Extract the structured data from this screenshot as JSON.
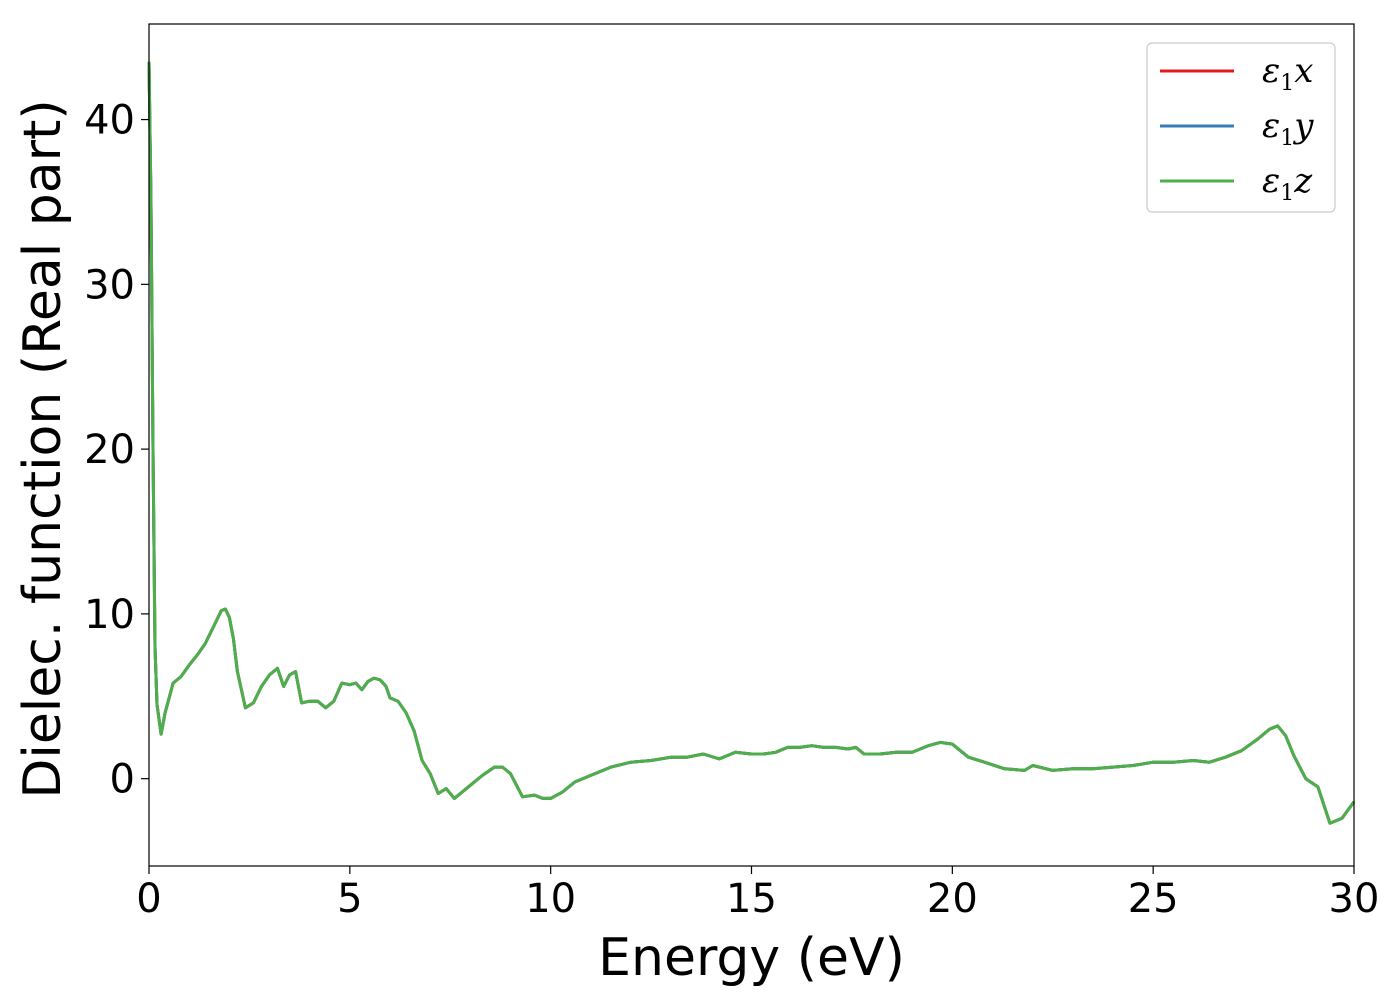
{
  "chart_data": {
    "type": "line",
    "xlabel": "Energy (eV)",
    "ylabel": "Dielec. function (Real part)",
    "xlim": [
      0,
      30
    ],
    "ylim": [
      -5.3,
      45.8
    ],
    "xticks": [
      0,
      5,
      10,
      15,
      20,
      25,
      30
    ],
    "yticks": [
      0,
      10,
      20,
      30,
      40
    ],
    "grid": false,
    "legend_position": "top-right",
    "x": [
      0.0,
      0.05,
      0.1,
      0.15,
      0.2,
      0.3,
      0.4,
      0.6,
      0.8,
      1.0,
      1.2,
      1.4,
      1.6,
      1.8,
      1.9,
      2.0,
      2.1,
      2.2,
      2.4,
      2.6,
      2.8,
      3.0,
      3.2,
      3.35,
      3.5,
      3.65,
      3.8,
      4.0,
      4.2,
      4.4,
      4.6,
      4.8,
      5.0,
      5.15,
      5.3,
      5.45,
      5.6,
      5.75,
      5.9,
      6.0,
      6.2,
      6.4,
      6.6,
      6.8,
      7.0,
      7.2,
      7.4,
      7.6,
      7.8,
      8.0,
      8.3,
      8.6,
      8.8,
      9.0,
      9.3,
      9.6,
      9.8,
      10.0,
      10.3,
      10.6,
      11.0,
      11.5,
      12.0,
      12.5,
      13.0,
      13.4,
      13.8,
      14.2,
      14.6,
      15.0,
      15.3,
      15.6,
      15.9,
      16.2,
      16.5,
      16.8,
      17.1,
      17.4,
      17.6,
      17.8,
      18.2,
      18.6,
      19.0,
      19.4,
      19.7,
      20.0,
      20.4,
      20.8,
      21.3,
      21.8,
      22.0,
      22.5,
      23.0,
      23.5,
      24.0,
      24.5,
      25.0,
      25.5,
      26.0,
      26.4,
      26.8,
      27.2,
      27.6,
      27.9,
      28.1,
      28.3,
      28.5,
      28.8,
      29.1,
      29.4,
      29.7,
      30.0
    ],
    "series": [
      {
        "name": "ε1x",
        "color": "#e41a1c",
        "values": [
          43.5,
          35.0,
          20.0,
          8.0,
          4.5,
          2.7,
          4.0,
          5.8,
          6.2,
          6.9,
          7.5,
          8.2,
          9.2,
          10.2,
          10.3,
          9.8,
          8.5,
          6.5,
          4.3,
          4.6,
          5.6,
          6.3,
          6.7,
          5.6,
          6.3,
          6.5,
          4.6,
          4.7,
          4.7,
          4.3,
          4.7,
          5.8,
          5.7,
          5.8,
          5.4,
          5.9,
          6.1,
          6.0,
          5.6,
          4.9,
          4.7,
          4.0,
          2.9,
          1.1,
          0.3,
          -0.9,
          -0.6,
          -1.2,
          -0.8,
          -0.4,
          0.2,
          0.7,
          0.7,
          0.3,
          -1.1,
          -1.0,
          -1.2,
          -1.2,
          -0.8,
          -0.2,
          0.2,
          0.7,
          1.0,
          1.1,
          1.3,
          1.3,
          1.5,
          1.2,
          1.6,
          1.5,
          1.5,
          1.6,
          1.9,
          1.9,
          2.0,
          1.9,
          1.9,
          1.8,
          1.9,
          1.5,
          1.5,
          1.6,
          1.6,
          2.0,
          2.2,
          2.1,
          1.3,
          1.0,
          0.6,
          0.5,
          0.8,
          0.5,
          0.6,
          0.6,
          0.7,
          0.8,
          1.0,
          1.0,
          1.1,
          1.0,
          1.3,
          1.7,
          2.4,
          3.0,
          3.2,
          2.6,
          1.4,
          0.0,
          -0.5,
          -2.7,
          -2.4,
          -1.4
        ]
      },
      {
        "name": "ε1y",
        "color": "#377eb8",
        "values": [
          43.5,
          35.0,
          20.0,
          8.0,
          4.5,
          2.7,
          4.0,
          5.8,
          6.2,
          6.9,
          7.5,
          8.2,
          9.2,
          10.2,
          10.3,
          9.8,
          8.5,
          6.5,
          4.3,
          4.6,
          5.6,
          6.3,
          6.7,
          5.6,
          6.3,
          6.5,
          4.6,
          4.7,
          4.7,
          4.3,
          4.7,
          5.8,
          5.7,
          5.8,
          5.4,
          5.9,
          6.1,
          6.0,
          5.6,
          4.9,
          4.7,
          4.0,
          2.9,
          1.1,
          0.3,
          -0.9,
          -0.6,
          -1.2,
          -0.8,
          -0.4,
          0.2,
          0.7,
          0.7,
          0.3,
          -1.1,
          -1.0,
          -1.2,
          -1.2,
          -0.8,
          -0.2,
          0.2,
          0.7,
          1.0,
          1.1,
          1.3,
          1.3,
          1.5,
          1.2,
          1.6,
          1.5,
          1.5,
          1.6,
          1.9,
          1.9,
          2.0,
          1.9,
          1.9,
          1.8,
          1.9,
          1.5,
          1.5,
          1.6,
          1.6,
          2.0,
          2.2,
          2.1,
          1.3,
          1.0,
          0.6,
          0.5,
          0.8,
          0.5,
          0.6,
          0.6,
          0.7,
          0.8,
          1.0,
          1.0,
          1.1,
          1.0,
          1.3,
          1.7,
          2.4,
          3.0,
          3.2,
          2.6,
          1.4,
          0.0,
          -0.5,
          -2.7,
          -2.4,
          -1.4
        ]
      },
      {
        "name": "ε1z",
        "color": "#4daf4a",
        "values": [
          43.5,
          35.0,
          20.0,
          8.0,
          4.5,
          2.7,
          4.0,
          5.8,
          6.2,
          6.9,
          7.5,
          8.2,
          9.2,
          10.2,
          10.3,
          9.8,
          8.5,
          6.5,
          4.3,
          4.6,
          5.6,
          6.3,
          6.7,
          5.6,
          6.3,
          6.5,
          4.6,
          4.7,
          4.7,
          4.3,
          4.7,
          5.8,
          5.7,
          5.8,
          5.4,
          5.9,
          6.1,
          6.0,
          5.6,
          4.9,
          4.7,
          4.0,
          2.9,
          1.1,
          0.3,
          -0.9,
          -0.6,
          -1.2,
          -0.8,
          -0.4,
          0.2,
          0.7,
          0.7,
          0.3,
          -1.1,
          -1.0,
          -1.2,
          -1.2,
          -0.8,
          -0.2,
          0.2,
          0.7,
          1.0,
          1.1,
          1.3,
          1.3,
          1.5,
          1.2,
          1.6,
          1.5,
          1.5,
          1.6,
          1.9,
          1.9,
          2.0,
          1.9,
          1.9,
          1.8,
          1.9,
          1.5,
          1.5,
          1.6,
          1.6,
          2.0,
          2.2,
          2.1,
          1.3,
          1.0,
          0.6,
          0.5,
          0.8,
          0.5,
          0.6,
          0.6,
          0.7,
          0.8,
          1.0,
          1.0,
          1.1,
          1.0,
          1.3,
          1.7,
          2.4,
          3.0,
          3.2,
          2.6,
          1.4,
          0.0,
          -0.5,
          -2.7,
          -2.4,
          -1.4
        ]
      }
    ],
    "legend": [
      {
        "symbol": "ε",
        "sub": "1",
        "var": "x",
        "color": "#e41a1c"
      },
      {
        "symbol": "ε",
        "sub": "1",
        "var": "y",
        "color": "#377eb8"
      },
      {
        "symbol": "ε",
        "sub": "1",
        "var": "z",
        "color": "#4daf4a"
      }
    ]
  }
}
